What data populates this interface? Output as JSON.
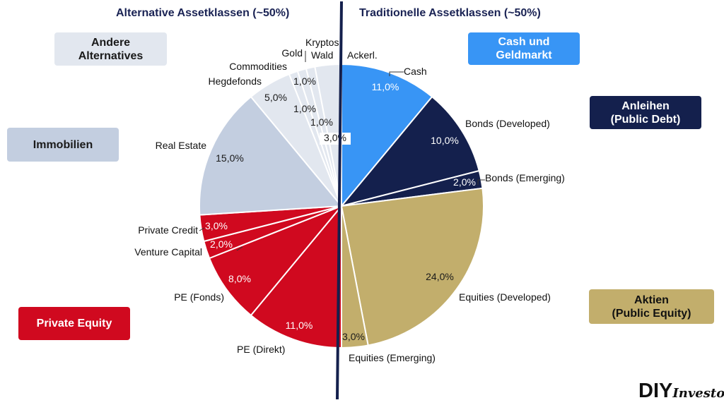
{
  "titles": {
    "left": "Alternative Assetklassen (~50%)",
    "right": "Traditionelle Assetklassen (~50%)"
  },
  "category_boxes": [
    {
      "id": "andere",
      "text": "Andere\nAlternatives",
      "bg": "#e2e7ef",
      "color": "#1a1a1a"
    },
    {
      "id": "immobilien",
      "text": "Immobilien",
      "bg": "#c3cee0",
      "color": "#1a1a1a"
    },
    {
      "id": "privateequity",
      "text": "Private Equity",
      "bg": "#d0091f",
      "color": "#ffffff"
    },
    {
      "id": "cash",
      "text": "Cash und\nGeldmarkt",
      "bg": "#3895f5",
      "color": "#ffffff"
    },
    {
      "id": "anleihen",
      "text": "Anleihen\n(Public Debt)",
      "bg": "#14204d",
      "color": "#ffffff"
    },
    {
      "id": "aktien",
      "text": "Aktien\n(Public Equity)",
      "bg": "#c2ae6c",
      "color": "#111111"
    }
  ],
  "colors": {
    "cash": "#3895f5",
    "bonds": "#14204d",
    "equities": "#c2ae6c",
    "private_equity": "#d0091f",
    "real_estate": "#c3cee0",
    "other_alternatives": "#e2e7ef",
    "divider": "#14204d"
  },
  "logo": {
    "main": "DIY",
    "sub": "Investor"
  },
  "chart_data": {
    "type": "pie",
    "start": "12 o'clock",
    "direction": "clockwise",
    "slices": [
      {
        "label": "Cash",
        "value": 11.0,
        "value_label": "11,0%",
        "group": "cash"
      },
      {
        "label": "Bonds (Developed)",
        "value": 10.0,
        "value_label": "10,0%",
        "group": "bonds"
      },
      {
        "label": "Bonds (Emerging)",
        "value": 2.0,
        "value_label": "2,0%",
        "group": "bonds"
      },
      {
        "label": "Equities (Developed)",
        "value": 24.0,
        "value_label": "24,0%",
        "group": "equities"
      },
      {
        "label": "Equities (Emerging)",
        "value": 3.0,
        "value_label": "3,0%",
        "group": "equities"
      },
      {
        "label": "PE (Direkt)",
        "value": 11.0,
        "value_label": "11,0%",
        "group": "private_equity"
      },
      {
        "label": "PE (Fonds)",
        "value": 8.0,
        "value_label": "8,0%",
        "group": "private_equity"
      },
      {
        "label": "Venture Capital",
        "value": 2.0,
        "value_label": "2,0%",
        "group": "private_equity"
      },
      {
        "label": "Private Credit",
        "value": 3.0,
        "value_label": "3,0%",
        "group": "private_equity"
      },
      {
        "label": "Real Estate",
        "value": 15.0,
        "value_label": "15,0%",
        "group": "real_estate"
      },
      {
        "label": "Hegdefonds",
        "value": 5.0,
        "value_label": "5,0%",
        "group": "other_alternatives"
      },
      {
        "label": "Commodities",
        "value": 1.0,
        "value_label": "1,0%",
        "group": "other_alternatives"
      },
      {
        "label": "Gold",
        "value": 1.0,
        "value_label": "1,0%",
        "group": "other_alternatives"
      },
      {
        "label": "Kryptos",
        "value": 1.0,
        "value_label": "1,0%",
        "group": "other_alternatives"
      },
      {
        "label": "Wald",
        "value": 0,
        "value_label": "",
        "group": "other_alternatives"
      },
      {
        "label": "Ackerl.",
        "value": 3.0,
        "value_label": "3,0%",
        "group": "other_alternatives"
      }
    ]
  }
}
